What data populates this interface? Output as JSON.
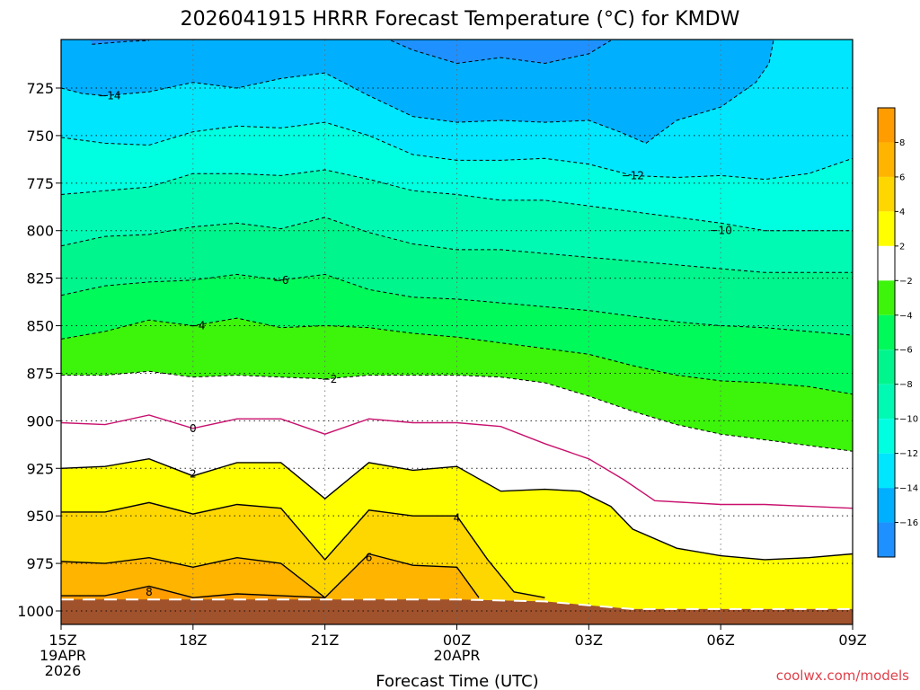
{
  "chart_data": {
    "type": "heatmap",
    "title": "2026041915 HRRR Forecast Temperature (°C) for KMDW",
    "xlabel": "Forecast Time (UTC)",
    "ylabel": "",
    "xlim": [
      15,
      33
    ],
    "ylim": [
      1010,
      700
    ],
    "grid": true,
    "x_ticks": [
      {
        "value": 15,
        "lines": [
          "15Z",
          "19APR",
          "2026"
        ]
      },
      {
        "value": 18,
        "lines": [
          "18Z"
        ]
      },
      {
        "value": 21,
        "lines": [
          "21Z"
        ]
      },
      {
        "value": 24,
        "lines": [
          "00Z",
          "20APR"
        ]
      },
      {
        "value": 27,
        "lines": [
          "03Z"
        ]
      },
      {
        "value": 30,
        "lines": [
          "06Z"
        ]
      },
      {
        "value": 33,
        "lines": [
          "09Z"
        ]
      }
    ],
    "y_ticks": [
      725,
      750,
      775,
      800,
      825,
      850,
      875,
      900,
      925,
      950,
      975,
      1000
    ],
    "fill_bands": [
      {
        "range": "below -16",
        "color": "#1e90ff"
      },
      {
        "range": "-16 to -14",
        "color": "#00b0ff"
      },
      {
        "range": "-14 to -12",
        "color": "#00e6ff"
      },
      {
        "range": "-12 to -10",
        "color": "#00ffe0"
      },
      {
        "range": "-10 to -8",
        "color": "#00fab4"
      },
      {
        "range": "-8 to -6",
        "color": "#00f58c"
      },
      {
        "range": "-6 to -4",
        "color": "#00fa5a"
      },
      {
        "range": "-4 to -2",
        "color": "#3cf50a"
      },
      {
        "range": "-2 to 2",
        "color": "#ffffff"
      },
      {
        "range": "2 to 4",
        "color": "#ffff00"
      },
      {
        "range": "4 to 6",
        "color": "#ffd700"
      },
      {
        "range": "6 to 8",
        "color": "#ffb400"
      },
      {
        "range": "above 8",
        "color": "#ff9c00"
      }
    ],
    "ground_color": "#a0522d",
    "colorbar": {
      "labels": [
        "8",
        "6",
        "4",
        "2",
        "−2",
        "−4",
        "−6",
        "−8",
        "−10",
        "−12",
        "−14",
        "−16"
      ],
      "swatches": [
        "#ff9c00",
        "#ffb400",
        "#ffd700",
        "#ffff00",
        "#ffffff",
        "#3cf50a",
        "#00fa5a",
        "#00f58c",
        "#00fab4",
        "#00ffe0",
        "#00e6ff",
        "#00b0ff",
        "#1e90ff"
      ]
    },
    "contours": [
      {
        "level": "-16",
        "label": "",
        "style": "dashed",
        "color": "#000000",
        "points": [
          [
            15.7,
            702
          ],
          [
            16.5,
            700.5
          ],
          [
            17,
            700
          ]
        ]
      },
      {
        "level": "-16",
        "label": "",
        "style": "dashed",
        "color": "#000000",
        "points": [
          [
            22.5,
            700
          ],
          [
            23,
            705
          ],
          [
            24,
            712
          ],
          [
            25,
            709
          ],
          [
            26,
            712
          ],
          [
            27,
            707
          ],
          [
            27.5,
            700
          ]
        ]
      },
      {
        "level": "-14",
        "label": "-14",
        "label_at": [
          16.1,
          729
        ],
        "style": "dashed",
        "color": "#000000",
        "points": [
          [
            15,
            725
          ],
          [
            15.5,
            728
          ],
          [
            16,
            729
          ],
          [
            17,
            727
          ],
          [
            18,
            722
          ],
          [
            19,
            725
          ],
          [
            20,
            720
          ],
          [
            21,
            717
          ],
          [
            22,
            729
          ],
          [
            23,
            740
          ],
          [
            24,
            743
          ],
          [
            25,
            742
          ],
          [
            26,
            743
          ],
          [
            27,
            742
          ],
          [
            27.7,
            748
          ],
          [
            28.3,
            754
          ],
          [
            29,
            742
          ],
          [
            30,
            735
          ],
          [
            30.8,
            722
          ],
          [
            31.1,
            712
          ],
          [
            31.2,
            700
          ]
        ]
      },
      {
        "level": "-12",
        "label": "-12",
        "label_at": [
          28.0,
          771
        ],
        "style": "dashed",
        "color": "#000000",
        "points": [
          [
            15,
            751
          ],
          [
            16,
            754
          ],
          [
            17,
            755
          ],
          [
            18,
            748
          ],
          [
            19,
            745
          ],
          [
            20,
            746
          ],
          [
            21,
            743
          ],
          [
            22,
            750
          ],
          [
            23,
            760
          ],
          [
            24,
            763
          ],
          [
            25,
            763
          ],
          [
            26,
            762
          ],
          [
            27,
            765
          ],
          [
            28,
            771
          ],
          [
            29,
            772
          ],
          [
            30,
            771
          ],
          [
            31,
            773
          ],
          [
            32,
            770
          ],
          [
            33,
            762
          ]
        ]
      },
      {
        "level": "-10",
        "label": "-10",
        "label_at": [
          30.0,
          800
        ],
        "style": "dashed",
        "color": "#000000",
        "points": [
          [
            15,
            781
          ],
          [
            16,
            779
          ],
          [
            17,
            777
          ],
          [
            18,
            770
          ],
          [
            19,
            770
          ],
          [
            20,
            771
          ],
          [
            21,
            768
          ],
          [
            22,
            773
          ],
          [
            23,
            779
          ],
          [
            24,
            781
          ],
          [
            25,
            784
          ],
          [
            26,
            784
          ],
          [
            27,
            787
          ],
          [
            28,
            790
          ],
          [
            29,
            793
          ],
          [
            30,
            796
          ],
          [
            31,
            800
          ],
          [
            32,
            800
          ],
          [
            33,
            800
          ]
        ]
      },
      {
        "level": "-8",
        "label": "",
        "style": "dashed",
        "color": "#000000",
        "points": [
          [
            15,
            808
          ],
          [
            16,
            803
          ],
          [
            17,
            802
          ],
          [
            18,
            798
          ],
          [
            19,
            796
          ],
          [
            20,
            799
          ],
          [
            21,
            793
          ],
          [
            22,
            801
          ],
          [
            23,
            807
          ],
          [
            24,
            810
          ],
          [
            25,
            810
          ],
          [
            26,
            812
          ],
          [
            27,
            814
          ],
          [
            28,
            816
          ],
          [
            29,
            818
          ],
          [
            30,
            820
          ],
          [
            31,
            822
          ],
          [
            32,
            822
          ],
          [
            33,
            822
          ]
        ]
      },
      {
        "level": "-6",
        "label": "-6",
        "label_at": [
          20.0,
          826
        ],
        "style": "dashed",
        "color": "#000000",
        "points": [
          [
            15,
            834
          ],
          [
            16,
            829
          ],
          [
            17,
            827
          ],
          [
            18,
            826
          ],
          [
            19,
            823
          ],
          [
            20,
            826
          ],
          [
            21,
            823
          ],
          [
            22,
            831
          ],
          [
            23,
            835
          ],
          [
            24,
            836
          ],
          [
            25,
            838
          ],
          [
            26,
            840
          ],
          [
            27,
            842
          ],
          [
            28,
            845
          ],
          [
            29,
            848
          ],
          [
            30,
            850
          ],
          [
            31,
            851
          ],
          [
            32,
            853
          ],
          [
            33,
            855
          ]
        ]
      },
      {
        "level": "-4",
        "label": "-4",
        "label_at": [
          18.1,
          850
        ],
        "style": "dashed",
        "color": "#000000",
        "points": [
          [
            15,
            857
          ],
          [
            16,
            853
          ],
          [
            17,
            847
          ],
          [
            18,
            850
          ],
          [
            19,
            846
          ],
          [
            20,
            851
          ],
          [
            21,
            850
          ],
          [
            22,
            851
          ],
          [
            23,
            854
          ],
          [
            24,
            856
          ],
          [
            25,
            859
          ],
          [
            26,
            862
          ],
          [
            27,
            865
          ],
          [
            28,
            871
          ],
          [
            29,
            876
          ],
          [
            30,
            879
          ],
          [
            31,
            880
          ],
          [
            32,
            882
          ],
          [
            33,
            886
          ]
        ]
      },
      {
        "level": "-2",
        "label": "-2",
        "label_at": [
          21.1,
          878
        ],
        "style": "dashed",
        "color": "#000000",
        "points": [
          [
            15,
            876
          ],
          [
            16,
            876
          ],
          [
            17,
            874
          ],
          [
            18,
            877
          ],
          [
            19,
            876
          ],
          [
            20,
            877
          ],
          [
            21,
            878
          ],
          [
            22,
            876
          ],
          [
            23,
            876
          ],
          [
            24,
            876
          ],
          [
            25,
            877
          ],
          [
            26,
            880
          ],
          [
            27,
            887
          ],
          [
            28,
            895
          ],
          [
            29,
            902
          ],
          [
            30,
            907
          ],
          [
            31,
            910
          ],
          [
            32,
            913
          ],
          [
            33,
            916
          ]
        ]
      },
      {
        "level": "0",
        "label": "0",
        "label_at": [
          18.0,
          904
        ],
        "style": "solid",
        "color": "#c8106c",
        "points": [
          [
            15,
            901
          ],
          [
            16,
            902
          ],
          [
            17,
            897
          ],
          [
            18,
            904
          ],
          [
            19,
            899
          ],
          [
            20,
            899
          ],
          [
            21,
            907
          ],
          [
            22,
            899
          ],
          [
            23,
            901
          ],
          [
            24,
            901
          ],
          [
            25,
            903
          ],
          [
            26,
            912
          ],
          [
            27,
            920
          ],
          [
            27.8,
            931
          ],
          [
            28.5,
            942
          ],
          [
            30,
            944
          ],
          [
            31,
            944
          ],
          [
            32,
            945
          ],
          [
            33,
            946
          ]
        ]
      },
      {
        "level": "2",
        "label": "2",
        "label_at": [
          18.0,
          928
        ],
        "style": "solid",
        "color": "#000000",
        "points": [
          [
            15,
            925
          ],
          [
            16,
            924
          ],
          [
            17,
            920
          ],
          [
            18,
            929
          ],
          [
            19,
            922
          ],
          [
            20,
            922
          ],
          [
            21,
            941
          ],
          [
            22,
            922
          ],
          [
            23,
            926
          ],
          [
            24,
            924
          ],
          [
            24,
            924
          ],
          [
            25,
            937
          ],
          [
            26.0,
            936
          ],
          [
            26.8,
            937
          ],
          [
            27.5,
            945
          ],
          [
            28,
            957
          ],
          [
            29,
            967
          ],
          [
            30,
            971
          ],
          [
            31,
            973
          ],
          [
            32,
            972
          ],
          [
            33,
            970
          ]
        ]
      },
      {
        "level": "4",
        "label": "4",
        "label_at": [
          24.0,
          951
        ],
        "style": "solid",
        "color": "#000000",
        "points": [
          [
            15,
            948
          ],
          [
            16,
            948
          ],
          [
            17,
            943
          ],
          [
            18,
            949
          ],
          [
            19,
            944
          ],
          [
            20,
            946
          ],
          [
            21,
            973
          ],
          [
            22,
            947
          ],
          [
            23,
            950
          ],
          [
            24,
            950
          ],
          [
            24.7,
            973
          ],
          [
            25.3,
            990
          ],
          [
            26.0,
            993
          ]
        ]
      },
      {
        "level": "6",
        "label": "6",
        "label_at": [
          22.0,
          972
        ],
        "style": "solid",
        "color": "#000000",
        "points": [
          [
            15,
            974
          ],
          [
            16,
            975
          ],
          [
            17,
            972
          ],
          [
            18,
            977
          ],
          [
            19,
            972
          ],
          [
            20,
            975
          ],
          [
            21,
            993
          ],
          [
            22,
            970
          ],
          [
            23,
            976
          ],
          [
            24,
            977
          ],
          [
            24.5,
            993
          ]
        ]
      },
      {
        "level": "8",
        "label": "8",
        "label_at": [
          17.0,
          990
        ],
        "style": "solid",
        "color": "#000000",
        "points": [
          [
            15,
            992
          ],
          [
            16,
            992
          ],
          [
            17,
            987
          ],
          [
            18,
            993
          ],
          [
            19,
            991
          ],
          [
            20,
            992
          ],
          [
            21,
            993
          ]
        ]
      }
    ],
    "ground_line": [
      [
        15,
        994
      ],
      [
        24,
        994
      ],
      [
        26,
        995
      ],
      [
        27,
        997
      ],
      [
        28,
        999
      ],
      [
        33,
        999
      ]
    ],
    "credit": "coolwx.com/models"
  }
}
